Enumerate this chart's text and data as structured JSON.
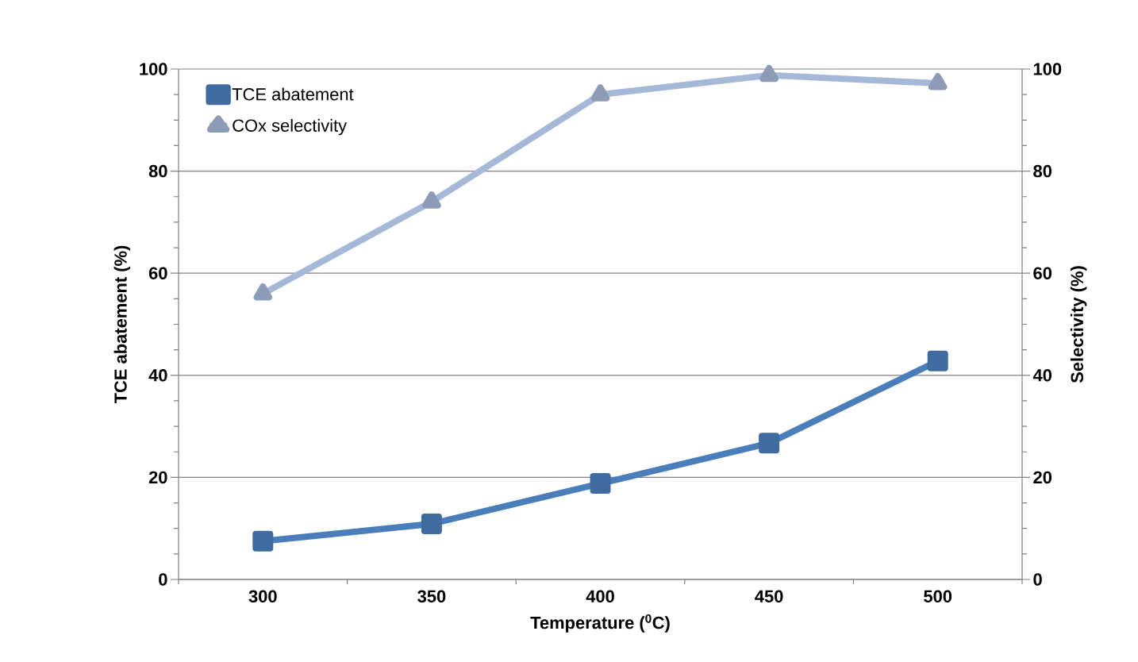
{
  "chart_data": {
    "type": "line",
    "xlabel": "Temperature ($^{0}$C)",
    "ylabel": "TCE abatement (%)",
    "y2label": "Selectivity (%)",
    "categories": [
      "300",
      "350",
      "400",
      "450",
      "500"
    ],
    "series": [
      {
        "name": "TCE abatement",
        "color": "#4a7ebb",
        "marker": "square",
        "values": [
          7.5,
          10.9,
          18.8,
          26.7,
          42.8
        ]
      },
      {
        "name": "COx selectivity",
        "color": "#a5b8d7",
        "marker": "triangle",
        "axis": "y2",
        "values": [
          56,
          74,
          95,
          98.8,
          97.2
        ]
      }
    ],
    "ylim": [
      0,
      100
    ],
    "yticks": [
      0,
      20,
      40,
      60,
      80,
      100
    ],
    "y2lim": [
      0,
      100
    ],
    "y2ticks": [
      0,
      20,
      40,
      60,
      80,
      100
    ],
    "grid": "y",
    "legend": "top left",
    "line_style": "solid"
  }
}
